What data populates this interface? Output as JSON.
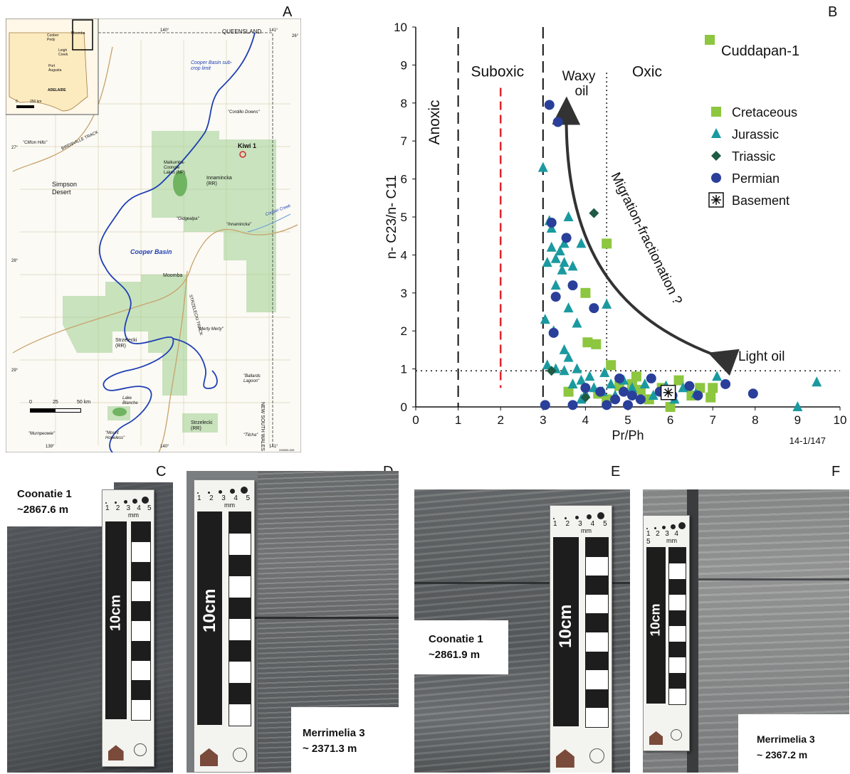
{
  "panels": {
    "A": "A",
    "B": "B",
    "C": "C",
    "D": "D",
    "E": "E",
    "F": "F"
  },
  "map": {
    "queensland": "QUEENSLAND",
    "new_south_wales": "NEW SOUTH WALES",
    "kiwi": "Kiwi 1",
    "cooper_basin": "Cooper Basin",
    "cooper_subcrop": "Cooper Basin sub-crop limit",
    "simpson": "Simpson Desert",
    "moomba": "Moomba",
    "innamincka_rr": "Innamincka (RR)",
    "innamincka": "\"Innamincka\"",
    "cordillo": "\"Cordillo Downs\"",
    "clifton": "\"Clifton Hills\"",
    "gidgealpa": "\"Gidgealpa\"",
    "merty": "\"Merty Merty\"",
    "strzelecki_rr": "Strzelecki (RR)",
    "strzelecki_rr2": "Strzelecki (RR)",
    "ballards": "\"Ballards Lagoon\"",
    "lake_blanche": "Lake Blanche",
    "murnpeowie": "\"Murnpeowie\"",
    "mount_hopeless": "\"Mount Hopeless\"",
    "tilcha": "\"Tilcha\"",
    "malkumba": "Malkumba-Coongie Lakes (NP)",
    "birdsville": "BIRDSVILLE TRACK",
    "strzelecki_track": "STRZELECKI TRACK",
    "cooper_creek": "Cooper Creek",
    "lon_140": "140°",
    "lon_141": "141°",
    "lon_139": "139°",
    "lat_27": "27°",
    "lat_28": "28°",
    "lat_29": "29°",
    "lat_26": "26°",
    "scale_0": "0",
    "scale_25": "25",
    "scale_50": "50 km",
    "inset_moomba": "Moomba",
    "inset_coober": "Coober Pedy",
    "inset_leigh": "Leigh Creek",
    "inset_port": "Port Augusta",
    "inset_adelaide": "ADELAIDE",
    "inset_scale0": "0",
    "inset_scale250": "250 km",
    "ref": "205990-009"
  },
  "chart_data": {
    "type": "scatter",
    "xlabel": "Pr/Ph",
    "ylabel": "n- C23/n- C11",
    "xlim": [
      0,
      10
    ],
    "ylim": [
      0,
      10
    ],
    "xticks": [
      "0",
      "1",
      "2",
      "3",
      "4",
      "5",
      "6",
      "7",
      "8",
      "9",
      "10"
    ],
    "yticks": [
      "0",
      "1",
      "2",
      "3",
      "4",
      "5",
      "6",
      "7",
      "8",
      "9",
      "10"
    ],
    "ref_code": "14-1/147",
    "zones": {
      "anoxic": "Anoxic",
      "suboxic": "Suboxic",
      "oxic": "Oxic"
    },
    "annotations": {
      "waxy": "Waxy oil",
      "migration": "Migration-fractionation ?",
      "light": "Light oil"
    },
    "legend_top": "Cuddapan-1",
    "legend": [
      "Cretaceous",
      "Jurassic",
      "Triassic",
      "Permian",
      "Basement"
    ],
    "colors": {
      "Cretaceous": "#8dc63f",
      "Jurassic": "#1a9aa0",
      "Triassic": "#1e5a44",
      "Permian": "#2a3f9a",
      "Basement": "#111111",
      "suboxic_line": "#e0252b"
    },
    "series": [
      {
        "name": "Cretaceous",
        "marker": "square",
        "points": [
          [
            4.5,
            4.3
          ],
          [
            4.0,
            3.0
          ],
          [
            4.05,
            1.7
          ],
          [
            4.25,
            1.65
          ],
          [
            4.6,
            1.1
          ],
          [
            4.3,
            0.35
          ],
          [
            4.5,
            0.2
          ],
          [
            5.1,
            0.6
          ],
          [
            5.3,
            0.45
          ],
          [
            5.5,
            0.2
          ],
          [
            5.8,
            0.5
          ],
          [
            6.0,
            0.0
          ],
          [
            6.2,
            0.7
          ],
          [
            6.5,
            0.3
          ],
          [
            6.7,
            0.5
          ],
          [
            6.95,
            0.25
          ],
          [
            7.0,
            0.5
          ],
          [
            5.2,
            0.8
          ],
          [
            4.8,
            0.55
          ],
          [
            3.6,
            0.4
          ]
        ]
      },
      {
        "name": "Jurassic",
        "marker": "triangle",
        "points": [
          [
            3.0,
            6.3
          ],
          [
            3.15,
            4.9
          ],
          [
            3.2,
            4.2
          ],
          [
            3.3,
            3.9
          ],
          [
            3.4,
            4.1
          ],
          [
            3.5,
            4.3
          ],
          [
            3.6,
            5.0
          ],
          [
            3.5,
            3.8
          ],
          [
            3.45,
            3.6
          ],
          [
            3.7,
            3.7
          ],
          [
            3.1,
            3.8
          ],
          [
            3.2,
            4.7
          ],
          [
            3.3,
            3.2
          ],
          [
            3.05,
            2.3
          ],
          [
            3.25,
            2.0
          ],
          [
            3.6,
            2.6
          ],
          [
            3.8,
            2.2
          ],
          [
            3.9,
            4.3
          ],
          [
            3.5,
            1.5
          ],
          [
            3.6,
            1.3
          ],
          [
            3.1,
            1.1
          ],
          [
            3.3,
            1.0
          ],
          [
            3.5,
            0.95
          ],
          [
            3.8,
            1.0
          ],
          [
            4.5,
            2.7
          ],
          [
            4.45,
            0.9
          ],
          [
            4.6,
            0.6
          ],
          [
            3.9,
            0.7
          ],
          [
            4.2,
            0.5
          ],
          [
            4.1,
            0.8
          ],
          [
            4.4,
            0.4
          ],
          [
            4.7,
            0.3
          ],
          [
            4.9,
            0.7
          ],
          [
            5.1,
            0.5
          ],
          [
            5.4,
            0.6
          ],
          [
            5.6,
            0.3
          ],
          [
            5.9,
            0.55
          ],
          [
            6.1,
            0.2
          ],
          [
            6.3,
            0.5
          ],
          [
            6.6,
            0.35
          ],
          [
            7.1,
            0.8
          ],
          [
            3.7,
            0.6
          ],
          [
            4.0,
            0.35
          ],
          [
            3.9,
            0.2
          ],
          [
            9.45,
            0.65
          ],
          [
            9.0,
            0.0
          ]
        ]
      },
      {
        "name": "Triassic",
        "marker": "diamond",
        "points": [
          [
            4.2,
            5.1
          ],
          [
            3.2,
            0.95
          ],
          [
            4.0,
            0.25
          ]
        ]
      },
      {
        "name": "Permian",
        "marker": "circle",
        "points": [
          [
            3.15,
            7.95
          ],
          [
            3.35,
            7.5
          ],
          [
            3.2,
            4.85
          ],
          [
            3.55,
            4.45
          ],
          [
            3.3,
            2.9
          ],
          [
            3.7,
            3.2
          ],
          [
            3.25,
            1.95
          ],
          [
            4.2,
            2.6
          ],
          [
            3.05,
            0.05
          ],
          [
            3.7,
            0.05
          ],
          [
            4.0,
            0.5
          ],
          [
            4.35,
            0.4
          ],
          [
            4.5,
            0.05
          ],
          [
            4.7,
            0.2
          ],
          [
            4.9,
            0.4
          ],
          [
            5.1,
            0.3
          ],
          [
            5.3,
            0.2
          ],
          [
            5.55,
            0.75
          ],
          [
            5.75,
            0.4
          ],
          [
            6.05,
            0.3
          ],
          [
            6.45,
            0.55
          ],
          [
            6.65,
            0.3
          ],
          [
            7.3,
            0.6
          ],
          [
            7.95,
            0.35
          ],
          [
            5.0,
            0.05
          ],
          [
            4.8,
            0.75
          ]
        ]
      },
      {
        "name": "Basement",
        "marker": "boxstar",
        "points": [
          [
            5.95,
            0.38
          ]
        ]
      }
    ]
  },
  "photos": {
    "C": {
      "label_line1": "Coonatie 1",
      "label_line2": "~2867.6 m",
      "scale_text": "10cm",
      "mm": "mm",
      "nums": "1 2 3 4 5"
    },
    "D": {
      "label_line1": "Merrimelia 3",
      "label_line2": "~ 2371.3 m",
      "scale_text": "10cm",
      "mm": "mm",
      "nums": "1 2 3 4 5"
    },
    "E": {
      "label_line1": "Coonatie 1",
      "label_line2": "~2861.9 m",
      "scale_text": "10cm",
      "mm": "mm",
      "nums": "1 2 3 4 5"
    },
    "F": {
      "label_line1": "Merrimelia 3",
      "label_line2": "~ 2367.2 m",
      "scale_text": "10cm",
      "mm": "mm",
      "nums": "1 2 3 4 5"
    }
  }
}
